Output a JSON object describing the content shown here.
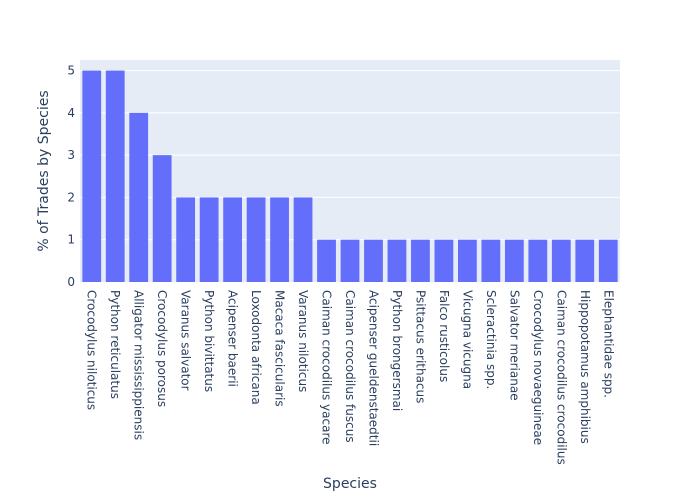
{
  "chart_data": {
    "type": "bar",
    "title": "",
    "xlabel": "Species",
    "ylabel": "% of Trades by Species",
    "ylim": [
      0,
      5.25
    ],
    "yticks": [
      0,
      1,
      2,
      3,
      4,
      5
    ],
    "grid": true,
    "legend": "none",
    "colors": {
      "bar": "#636efa",
      "plot_bg": "#e5ecf6",
      "grid": "#ffffff",
      "text": "#2a3f5f"
    },
    "categories": [
      "Crocodylus niloticus",
      "Python reticulatus",
      "Alligator mississippiensis",
      "Crocodylus porosus",
      "Varanus salvator",
      "Python bivittatus",
      "Acipenser baerii",
      "Loxodonta africana",
      "Macaca fascicularis",
      "Varanus niloticus",
      "Caiman crocodilus yacare",
      "Caiman crocodilus fuscus",
      "Acipenser gueldenstaedtii",
      "Python brongersmai",
      "Psittacus erithacus",
      "Falco rusticolus",
      "Vicugna vicugna",
      "Scleractinia spp.",
      "Salvator merianae",
      "Crocodylus novaeguineae",
      "Caiman crocodilus crocodilus",
      "Hippopotamus amphibius",
      "Elephantidae spp."
    ],
    "values": [
      5,
      5,
      4,
      3,
      2,
      2,
      2,
      2,
      2,
      2,
      1,
      1,
      1,
      1,
      1,
      1,
      1,
      1,
      1,
      1,
      1,
      1,
      1
    ]
  }
}
